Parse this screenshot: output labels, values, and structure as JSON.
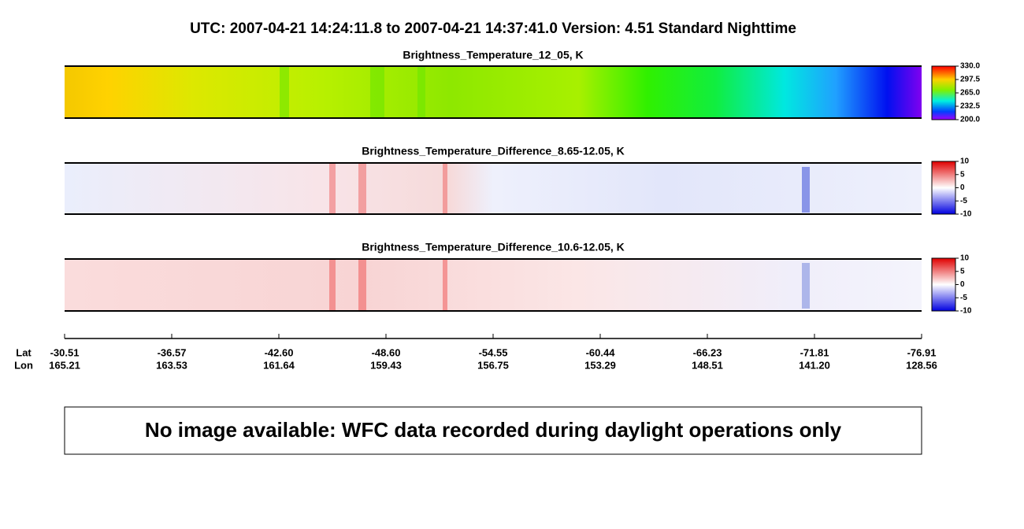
{
  "header": {
    "title": "UTC:  2007-04-21   14:24:11.8  to  2007-04-21   14:37:41.0    Version: 4.51  Standard Nighttime"
  },
  "panels": [
    {
      "title": "Brightness_Temperature_12_05, K",
      "colorbar_ticks": [
        "330.0",
        "297.5",
        "265.0",
        "232.5",
        "200.0"
      ]
    },
    {
      "title": "Brightness_Temperature_Difference_8.65-12.05, K",
      "colorbar_ticks": [
        "10",
        "5",
        "0",
        "-5",
        "-10"
      ]
    },
    {
      "title": "Brightness_Temperature_Difference_10.6-12.05, K",
      "colorbar_ticks": [
        "10",
        "5",
        "0",
        "-5",
        "-10"
      ]
    }
  ],
  "axis": {
    "lat_label": "Lat",
    "lon_label": "Lon",
    "lat": [
      "-30.51",
      "-36.57",
      "-42.60",
      "-48.60",
      "-54.55",
      "-60.44",
      "-66.23",
      "-71.81",
      "-76.91"
    ],
    "lon": [
      "165.21",
      "163.53",
      "161.64",
      "159.43",
      "156.75",
      "153.29",
      "148.51",
      "141.20",
      "128.56"
    ]
  },
  "message": "No image available: WFC data recorded during daylight operations only"
}
